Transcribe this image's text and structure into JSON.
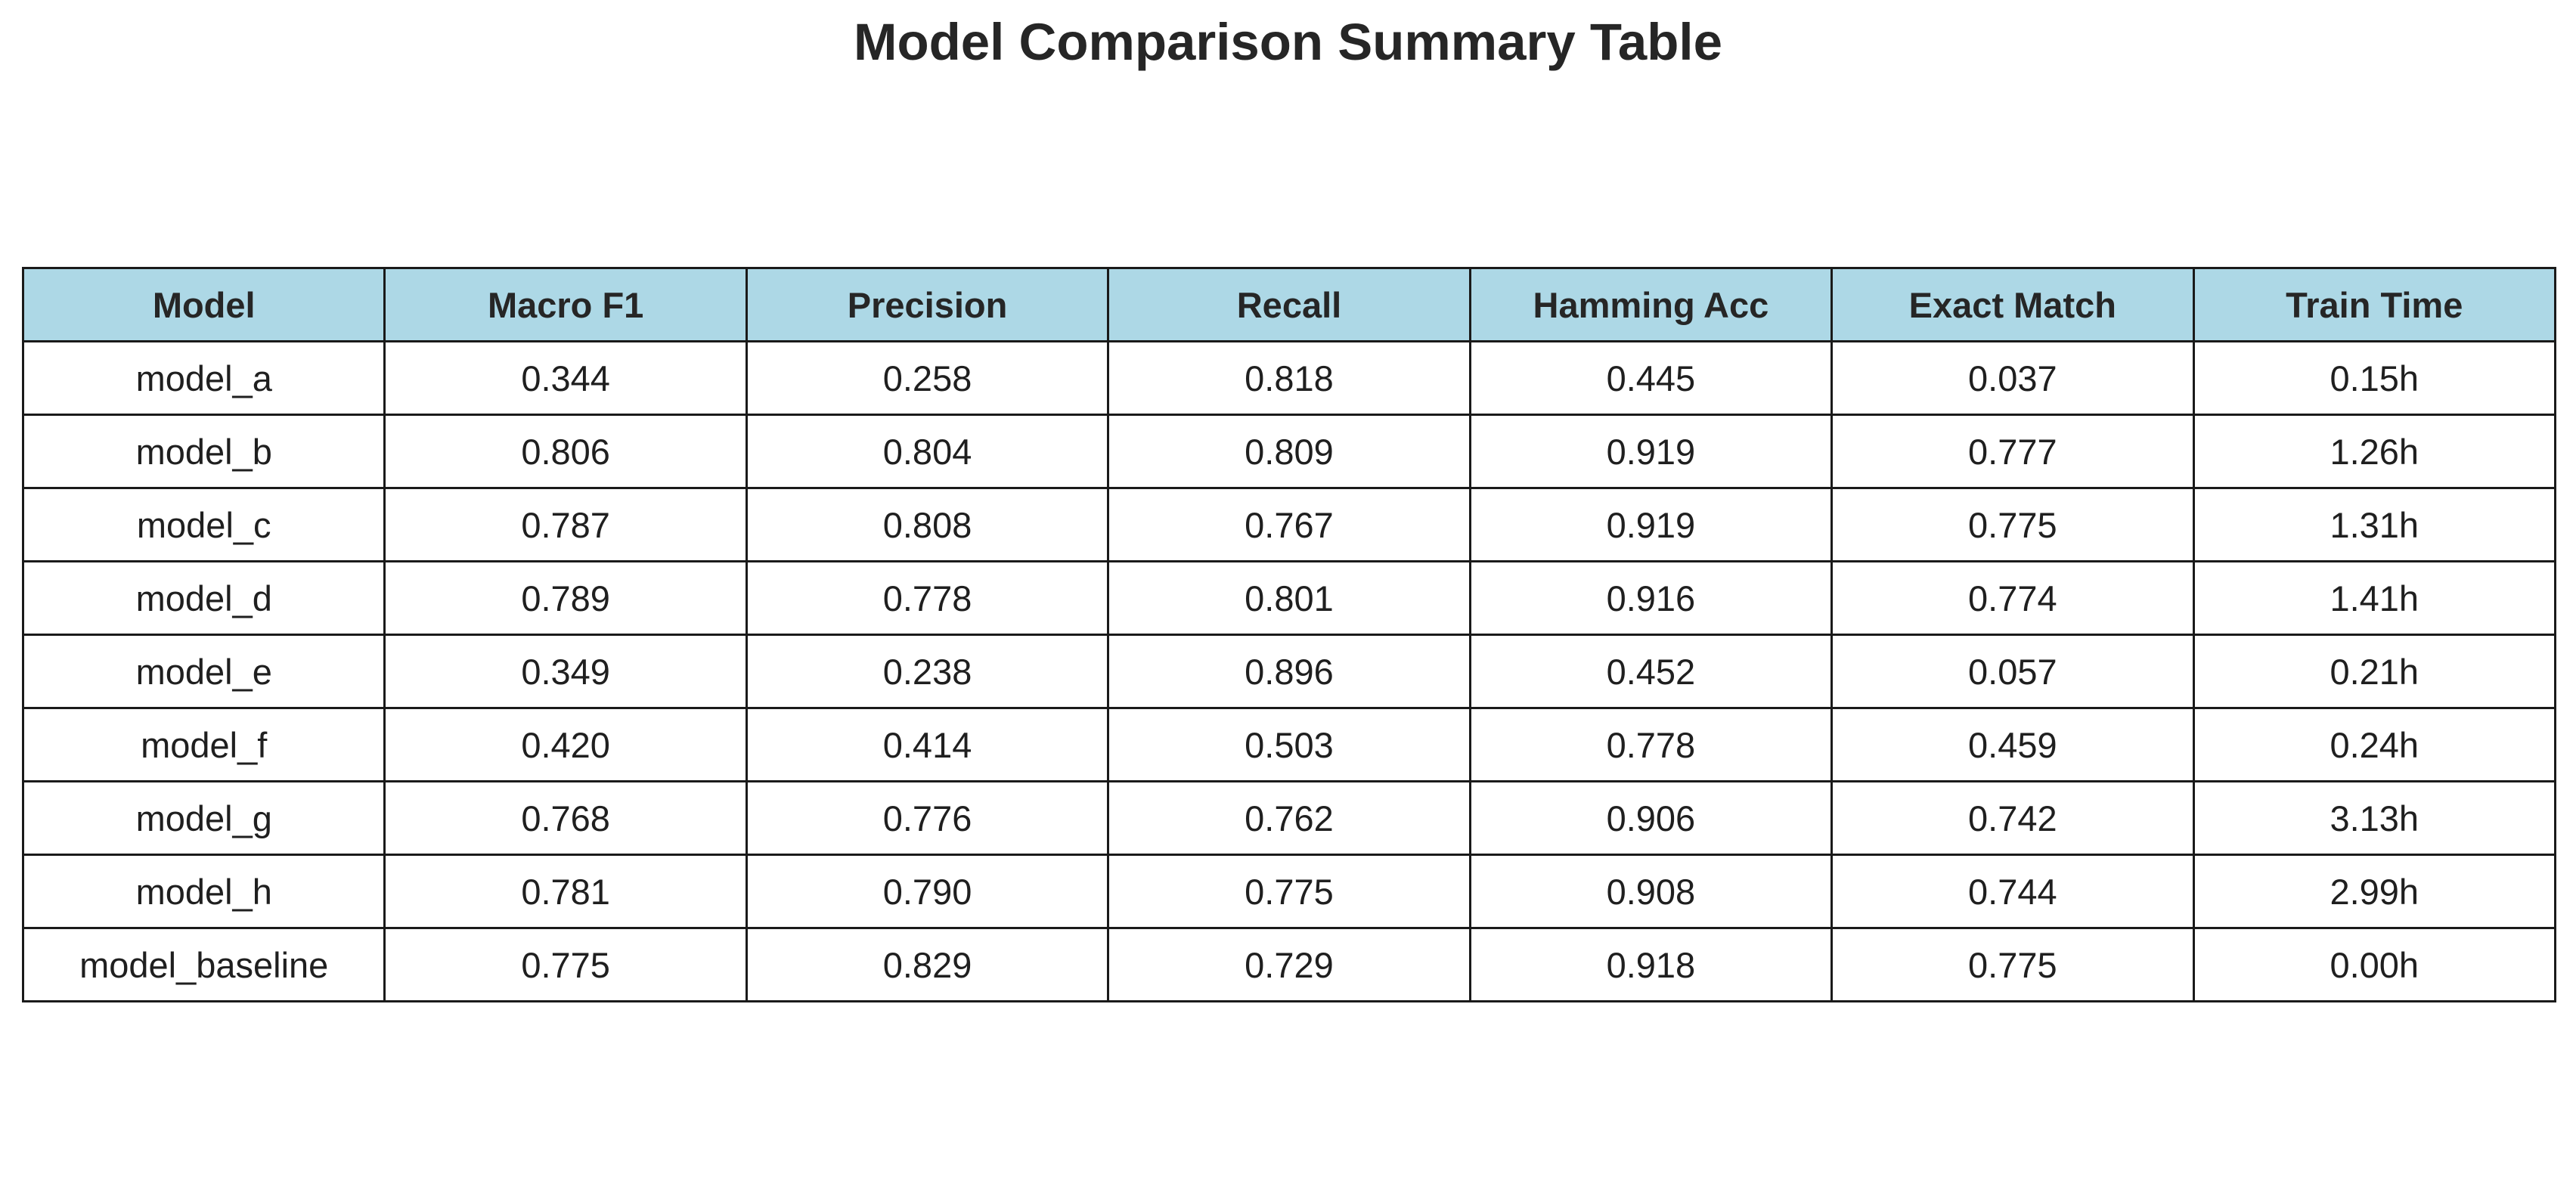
{
  "chart_data": {
    "type": "table",
    "title": "Model Comparison Summary Table",
    "header_color": "#add8e6",
    "columns": [
      "Model",
      "Macro F1",
      "Precision",
      "Recall",
      "Hamming Acc",
      "Exact Match",
      "Train Time"
    ],
    "rows": [
      [
        "model_a",
        "0.344",
        "0.258",
        "0.818",
        "0.445",
        "0.037",
        "0.15h"
      ],
      [
        "model_b",
        "0.806",
        "0.804",
        "0.809",
        "0.919",
        "0.777",
        "1.26h"
      ],
      [
        "model_c",
        "0.787",
        "0.808",
        "0.767",
        "0.919",
        "0.775",
        "1.31h"
      ],
      [
        "model_d",
        "0.789",
        "0.778",
        "0.801",
        "0.916",
        "0.774",
        "1.41h"
      ],
      [
        "model_e",
        "0.349",
        "0.238",
        "0.896",
        "0.452",
        "0.057",
        "0.21h"
      ],
      [
        "model_f",
        "0.420",
        "0.414",
        "0.503",
        "0.778",
        "0.459",
        "0.24h"
      ],
      [
        "model_g",
        "0.768",
        "0.776",
        "0.762",
        "0.906",
        "0.742",
        "3.13h"
      ],
      [
        "model_h",
        "0.781",
        "0.790",
        "0.775",
        "0.908",
        "0.744",
        "2.99h"
      ],
      [
        "model_baseline",
        "0.775",
        "0.829",
        "0.729",
        "0.918",
        "0.775",
        "0.00h"
      ]
    ]
  }
}
